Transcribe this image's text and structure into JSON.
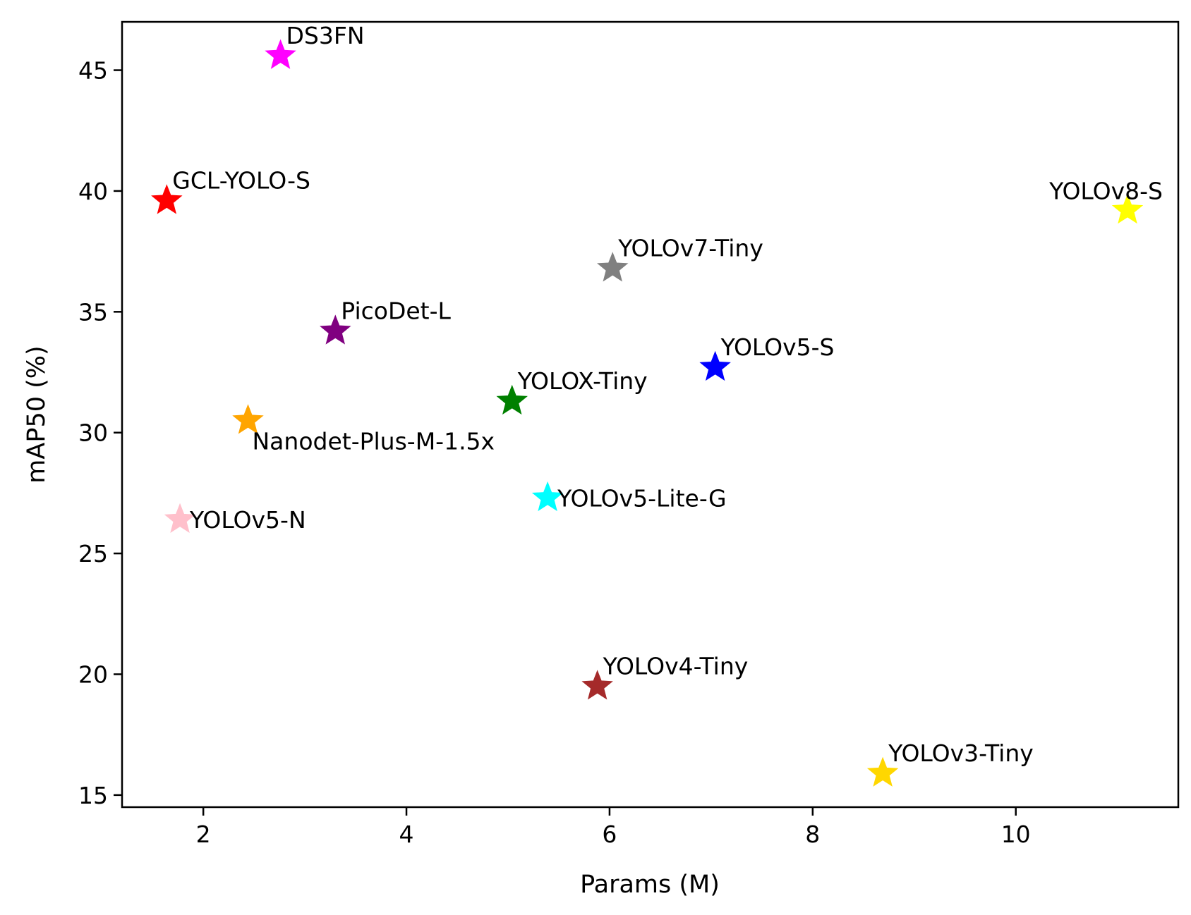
{
  "chart_data": {
    "type": "scatter",
    "title": "",
    "xlabel": "Params (M)",
    "ylabel": "mAP50 (%)",
    "xlim": [
      1.2,
      11.6
    ],
    "ylim": [
      14.5,
      47.0
    ],
    "xticks": [
      {
        "value": 2,
        "label": "2"
      },
      {
        "value": 4,
        "label": "4"
      },
      {
        "value": 6,
        "label": "6"
      },
      {
        "value": 8,
        "label": "8"
      },
      {
        "value": 10,
        "label": "10"
      }
    ],
    "yticks": [
      {
        "value": 15,
        "label": "15"
      },
      {
        "value": 20,
        "label": "20"
      },
      {
        "value": 25,
        "label": "25"
      },
      {
        "value": 30,
        "label": "30"
      },
      {
        "value": 35,
        "label": "35"
      },
      {
        "value": 40,
        "label": "40"
      },
      {
        "value": 45,
        "label": "45"
      }
    ],
    "grid": false,
    "legend": "none",
    "marker": "star",
    "points": [
      {
        "name": "DS3FN",
        "x": 2.76,
        "y": 45.6,
        "color": "#ff00ff",
        "label_pos": "above-right"
      },
      {
        "name": "GCL-YOLO-S",
        "x": 1.64,
        "y": 39.6,
        "color": "#ff0000",
        "label_pos": "above-right"
      },
      {
        "name": "YOLOv8-S",
        "x": 11.1,
        "y": 39.2,
        "color": "#ffff00",
        "label_pos": "above-left"
      },
      {
        "name": "YOLOv7-Tiny",
        "x": 6.03,
        "y": 36.8,
        "color": "#808080",
        "label_pos": "above-right"
      },
      {
        "name": "PicoDet-L",
        "x": 3.3,
        "y": 34.2,
        "color": "#800080",
        "label_pos": "above-right"
      },
      {
        "name": "YOLOv5-S",
        "x": 7.04,
        "y": 32.7,
        "color": "#0000ff",
        "label_pos": "above-right"
      },
      {
        "name": "YOLOX-Tiny",
        "x": 5.04,
        "y": 31.3,
        "color": "#008000",
        "label_pos": "above-right"
      },
      {
        "name": "Nanodet-Plus-M-1.5x",
        "x": 2.44,
        "y": 30.5,
        "color": "#ffa500",
        "label_pos": "below-right"
      },
      {
        "name": "YOLOv5-Lite-G",
        "x": 5.39,
        "y": 27.3,
        "color": "#00ffff",
        "label_pos": "right"
      },
      {
        "name": "YOLOv5-N",
        "x": 1.77,
        "y": 26.4,
        "color": "#ffc0cb",
        "label_pos": "right"
      },
      {
        "name": "YOLOv4-Tiny",
        "x": 5.88,
        "y": 19.5,
        "color": "#a52a2a",
        "label_pos": "above-right"
      },
      {
        "name": "YOLOv3-Tiny",
        "x": 8.69,
        "y": 15.9,
        "color": "#ffd700",
        "label_pos": "above-right"
      }
    ]
  }
}
